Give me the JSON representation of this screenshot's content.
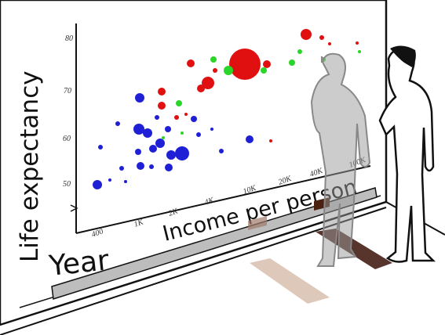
{
  "illustration": {
    "y_axis_label": "Life expectancy",
    "x_axis_label": "Income per person",
    "slider_label": "Year",
    "y_ticks": [
      "80",
      "70",
      "60",
      "50"
    ],
    "x_ticks": [
      "400",
      "1K",
      "2K",
      "4K",
      "10K",
      "20K",
      "40K",
      "100K"
    ]
  }
}
